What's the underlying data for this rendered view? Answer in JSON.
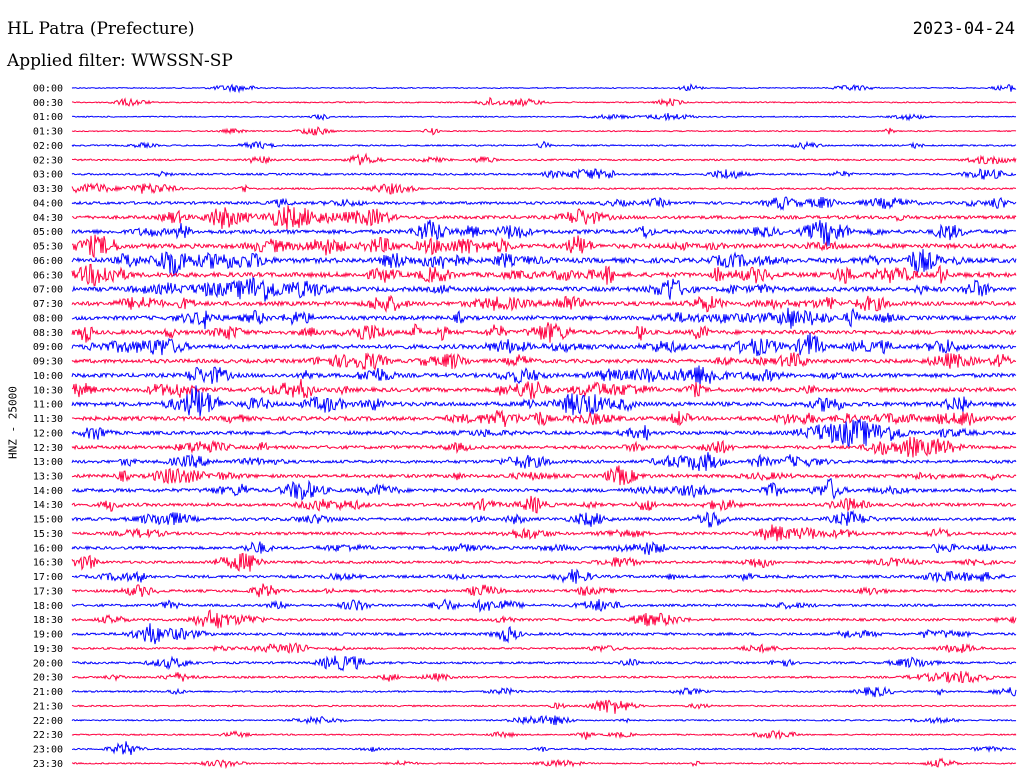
{
  "header": {
    "station": "HL Patra (Prefecture)",
    "date": "2023-04-24",
    "filter": "Applied filter: WWSSN-SP"
  },
  "chart_data": {
    "type": "line",
    "subtype": "helicorder",
    "channel_label": "HNZ - 25000",
    "colors": {
      "even_rows": "#0000ff",
      "odd_rows": "#ff0040"
    },
    "rows": [
      {
        "time": "00:00",
        "activity": 0.05
      },
      {
        "time": "00:30",
        "activity": 0.08
      },
      {
        "time": "01:00",
        "activity": 0.06
      },
      {
        "time": "01:30",
        "activity": 0.07
      },
      {
        "time": "02:00",
        "activity": 0.15
      },
      {
        "time": "02:30",
        "activity": 0.18
      },
      {
        "time": "03:00",
        "activity": 0.25
      },
      {
        "time": "03:30",
        "activity": 0.2
      },
      {
        "time": "04:00",
        "activity": 0.45
      },
      {
        "time": "04:30",
        "activity": 0.55
      },
      {
        "time": "05:00",
        "activity": 0.7
      },
      {
        "time": "05:30",
        "activity": 0.8
      },
      {
        "time": "06:00",
        "activity": 0.9
      },
      {
        "time": "06:30",
        "activity": 0.85
      },
      {
        "time": "07:00",
        "activity": 0.8
      },
      {
        "time": "07:30",
        "activity": 0.75
      },
      {
        "time": "08:00",
        "activity": 0.7
      },
      {
        "time": "08:30",
        "activity": 0.7
      },
      {
        "time": "09:00",
        "activity": 0.75
      },
      {
        "time": "09:30",
        "activity": 0.65
      },
      {
        "time": "10:00",
        "activity": 0.7
      },
      {
        "time": "10:30",
        "activity": 0.7
      },
      {
        "time": "11:00",
        "activity": 0.75
      },
      {
        "time": "11:30",
        "activity": 0.7
      },
      {
        "time": "12:00",
        "activity": 0.6
      },
      {
        "time": "12:30",
        "activity": 0.55
      },
      {
        "time": "13:00",
        "activity": 0.5
      },
      {
        "time": "13:30",
        "activity": 0.55
      },
      {
        "time": "14:00",
        "activity": 0.6
      },
      {
        "time": "14:30",
        "activity": 0.5
      },
      {
        "time": "15:00",
        "activity": 0.5
      },
      {
        "time": "15:30",
        "activity": 0.45
      },
      {
        "time": "16:00",
        "activity": 0.45
      },
      {
        "time": "16:30",
        "activity": 0.4
      },
      {
        "time": "17:00",
        "activity": 0.45
      },
      {
        "time": "17:30",
        "activity": 0.4
      },
      {
        "time": "18:00",
        "activity": 0.35
      },
      {
        "time": "18:30",
        "activity": 0.35
      },
      {
        "time": "19:00",
        "activity": 0.4
      },
      {
        "time": "19:30",
        "activity": 0.25
      },
      {
        "time": "20:00",
        "activity": 0.3
      },
      {
        "time": "20:30",
        "activity": 0.25
      },
      {
        "time": "21:00",
        "activity": 0.2
      },
      {
        "time": "21:30",
        "activity": 0.15
      },
      {
        "time": "22:00",
        "activity": 0.12
      },
      {
        "time": "22:30",
        "activity": 0.12
      },
      {
        "time": "23:00",
        "activity": 0.15
      },
      {
        "time": "23:30",
        "activity": 0.12
      }
    ]
  }
}
